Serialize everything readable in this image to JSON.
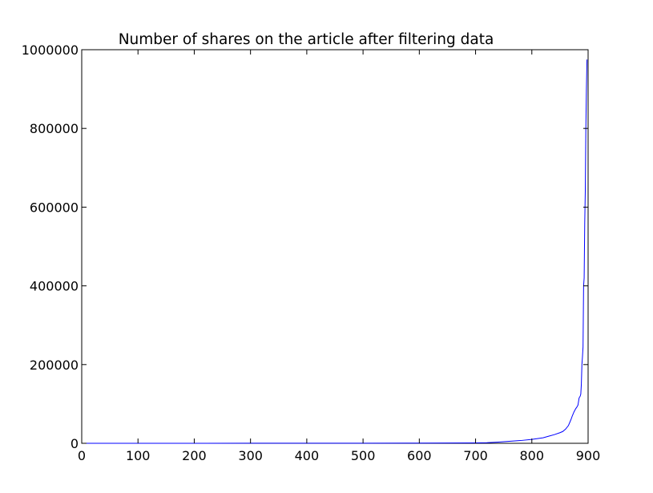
{
  "chart_data": {
    "type": "line",
    "title": "Number of shares on the article after filtering data",
    "xlabel": "",
    "ylabel": "",
    "xlim": [
      0,
      900
    ],
    "ylim": [
      0,
      1000000
    ],
    "x_ticks": [
      0,
      100,
      200,
      300,
      400,
      500,
      600,
      700,
      800,
      900
    ],
    "y_ticks": [
      0,
      200000,
      400000,
      600000,
      800000,
      1000000
    ],
    "grid": false,
    "line_color": "#0000ff",
    "series": [
      {
        "x": [
          0,
          100,
          200,
          300,
          400,
          500,
          600,
          700,
          720,
          740,
          760,
          780,
          800,
          820,
          830,
          840,
          850,
          855,
          860,
          865,
          868,
          870,
          872,
          875,
          878,
          880,
          882,
          884,
          886,
          887,
          888,
          889,
          890,
          891,
          892,
          893,
          894,
          895,
          896,
          897,
          898
        ],
        "y": [
          0,
          50,
          100,
          150,
          200,
          300,
          500,
          1000,
          1500,
          3000,
          5000,
          7000,
          10000,
          14000,
          18000,
          22000,
          27000,
          30000,
          36000,
          45000,
          55000,
          62000,
          70000,
          80000,
          88000,
          92000,
          97000,
          115000,
          120000,
          125000,
          150000,
          200000,
          220000,
          245000,
          400000,
          420000,
          560000,
          640000,
          800000,
          900000,
          975000
        ]
      }
    ]
  }
}
